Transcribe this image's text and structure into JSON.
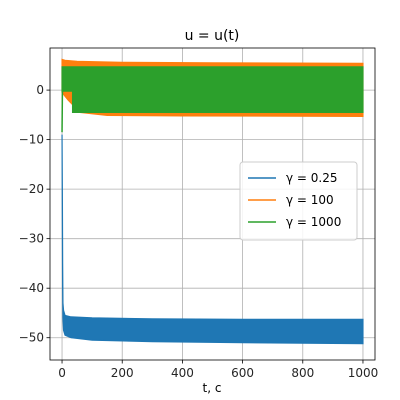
{
  "chart_data": {
    "type": "line",
    "title": "u = u(t)",
    "xlabel": "t, c",
    "ylabel": "",
    "xlim": [
      -40,
      1040
    ],
    "ylim": [
      -54.5,
      8.5
    ],
    "xticks": [
      0,
      200,
      400,
      600,
      800,
      1000
    ],
    "yticks": [
      0,
      -10,
      -20,
      -30,
      -40,
      -50
    ],
    "ytick_labels": [
      "0",
      "−10",
      "−20",
      "−30",
      "−40",
      "−50"
    ],
    "grid": true,
    "legend_position": "center-right",
    "series": [
      {
        "name": "γ = 0.25",
        "color": "#1f77b4",
        "band_upper": [
          [
            0,
            -9
          ],
          [
            1,
            -20
          ],
          [
            2,
            -35
          ],
          [
            3,
            -43
          ],
          [
            5,
            -44.5
          ],
          [
            10,
            -45.5
          ],
          [
            30,
            -45.8
          ],
          [
            100,
            -46.0
          ],
          [
            300,
            -46.2
          ],
          [
            600,
            -46.3
          ],
          [
            1000,
            -46.3
          ]
        ],
        "band_lower": [
          [
            0,
            -9
          ],
          [
            1,
            -25
          ],
          [
            2,
            -40
          ],
          [
            3,
            -46
          ],
          [
            5,
            -48.5
          ],
          [
            10,
            -49.5
          ],
          [
            30,
            -50.0
          ],
          [
            100,
            -50.5
          ],
          [
            300,
            -50.8
          ],
          [
            600,
            -51.0
          ],
          [
            1000,
            -51.2
          ]
        ]
      },
      {
        "name": "γ = 100",
        "color": "#ff7f0e",
        "band_upper": [
          [
            0,
            6.2
          ],
          [
            10,
            6.0
          ],
          [
            50,
            5.8
          ],
          [
            200,
            5.6
          ],
          [
            500,
            5.5
          ],
          [
            1000,
            5.4
          ]
        ],
        "band_lower": [
          [
            0,
            -0.5
          ],
          [
            20,
            -2
          ],
          [
            60,
            -4.5
          ],
          [
            150,
            -5.1
          ],
          [
            400,
            -5.2
          ],
          [
            1000,
            -5.3
          ]
        ]
      },
      {
        "name": "γ = 1000",
        "color": "#2ca02c",
        "band_upper": [
          [
            0,
            4.7
          ],
          [
            1000,
            4.7
          ]
        ],
        "band_lower": [
          [
            0,
            -0.2
          ],
          [
            35,
            -0.2
          ],
          [
            35,
            -4.5
          ],
          [
            1000,
            -4.5
          ]
        ],
        "spike": [
          [
            0,
            -8.5
          ],
          [
            2,
            4.7
          ]
        ]
      }
    ]
  }
}
